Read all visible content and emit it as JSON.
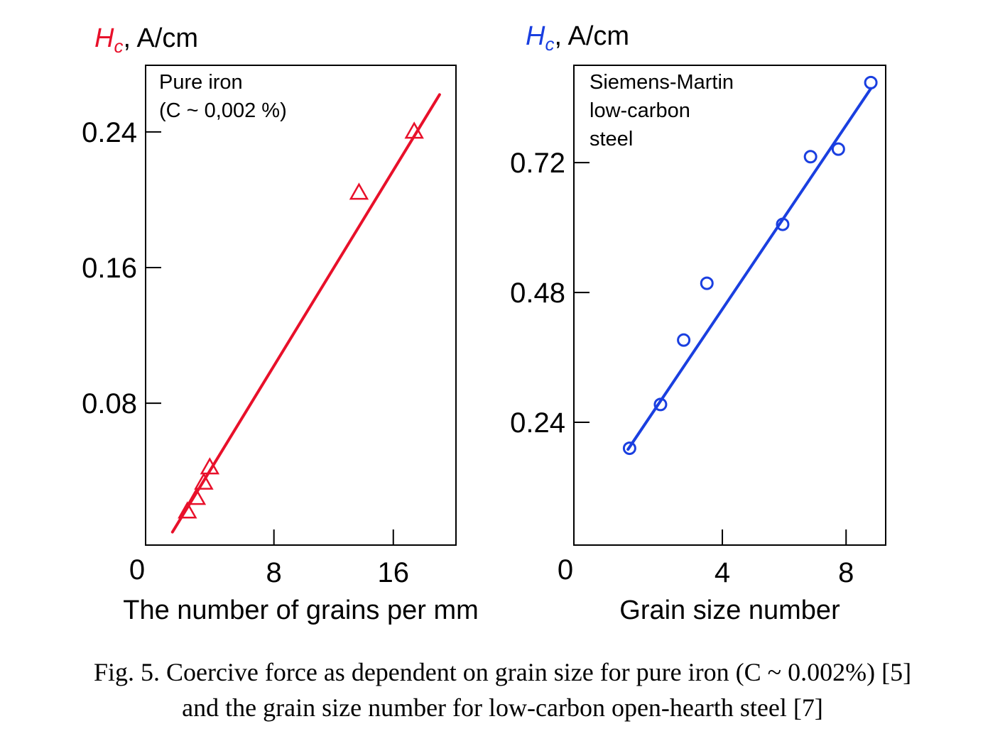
{
  "chart_data": [
    {
      "type": "scatter",
      "ylabel_symbol": "H",
      "ylabel_subscript": "c",
      "ylabel_unit": ", A/cm",
      "xlabel": "The number of grains per mm",
      "annotation": [
        "Pure iron",
        "(C ~ 0,002 %)"
      ],
      "color": "#e8102a",
      "marker": "triangle",
      "xlim": [
        -0.6,
        20.2
      ],
      "ylim": [
        -0.0037,
        0.2793
      ],
      "x_ticks": [
        {
          "value": 8,
          "label": "8"
        },
        {
          "value": 16,
          "label": "16"
        }
      ],
      "x_origin_label": "0",
      "y_ticks": [
        {
          "value": 0.08,
          "label": "0.08"
        },
        {
          "value": 0.16,
          "label": "0.16"
        },
        {
          "value": 0.24,
          "label": "0.24"
        }
      ],
      "grid": false,
      "points": [
        {
          "x": 2.2,
          "y": 0.016
        },
        {
          "x": 2.8,
          "y": 0.024
        },
        {
          "x": 3.3,
          "y": 0.033
        },
        {
          "x": 3.7,
          "y": 0.042
        },
        {
          "x": 13.7,
          "y": 0.204
        },
        {
          "x": 17.4,
          "y": 0.24
        }
      ],
      "fit_line": {
        "x": [
          1.2,
          19.1
        ],
        "y": [
          0.004,
          0.262
        ]
      }
    },
    {
      "type": "scatter",
      "ylabel_symbol": "H",
      "ylabel_subscript": "c",
      "ylabel_unit": ", A/cm",
      "xlabel": "Grain size number",
      "annotation": [
        "Siemens-Martin",
        "low-carbon",
        "steel"
      ],
      "color": "#1a3fe0",
      "marker": "circle",
      "xlim": [
        -0.8,
        9.28
      ],
      "ylim": [
        0.013,
        0.9
      ],
      "x_ticks": [
        {
          "value": 4,
          "label": "4"
        },
        {
          "value": 8,
          "label": "8"
        }
      ],
      "x_origin_label": "0",
      "y_ticks": [
        {
          "value": 0.24,
          "label": "0.24"
        },
        {
          "value": 0.48,
          "label": "0.48"
        },
        {
          "value": 0.72,
          "label": "0.72"
        }
      ],
      "grid": false,
      "points": [
        {
          "x": 1.0,
          "y": 0.192
        },
        {
          "x": 2.0,
          "y": 0.273
        },
        {
          "x": 2.75,
          "y": 0.392
        },
        {
          "x": 3.5,
          "y": 0.497
        },
        {
          "x": 5.95,
          "y": 0.606
        },
        {
          "x": 6.85,
          "y": 0.731
        },
        {
          "x": 7.75,
          "y": 0.745
        },
        {
          "x": 8.8,
          "y": 0.868
        }
      ],
      "fit_line": {
        "x": [
          0.95,
          8.8
        ],
        "y": [
          0.19,
          0.857
        ]
      }
    }
  ],
  "caption": {
    "line1": "Fig. 5. Coercive force as dependent on grain size for pure iron (C ~ 0.002%) [5]",
    "line2": "and the grain size number for low-carbon open-hearth steel [7]"
  }
}
